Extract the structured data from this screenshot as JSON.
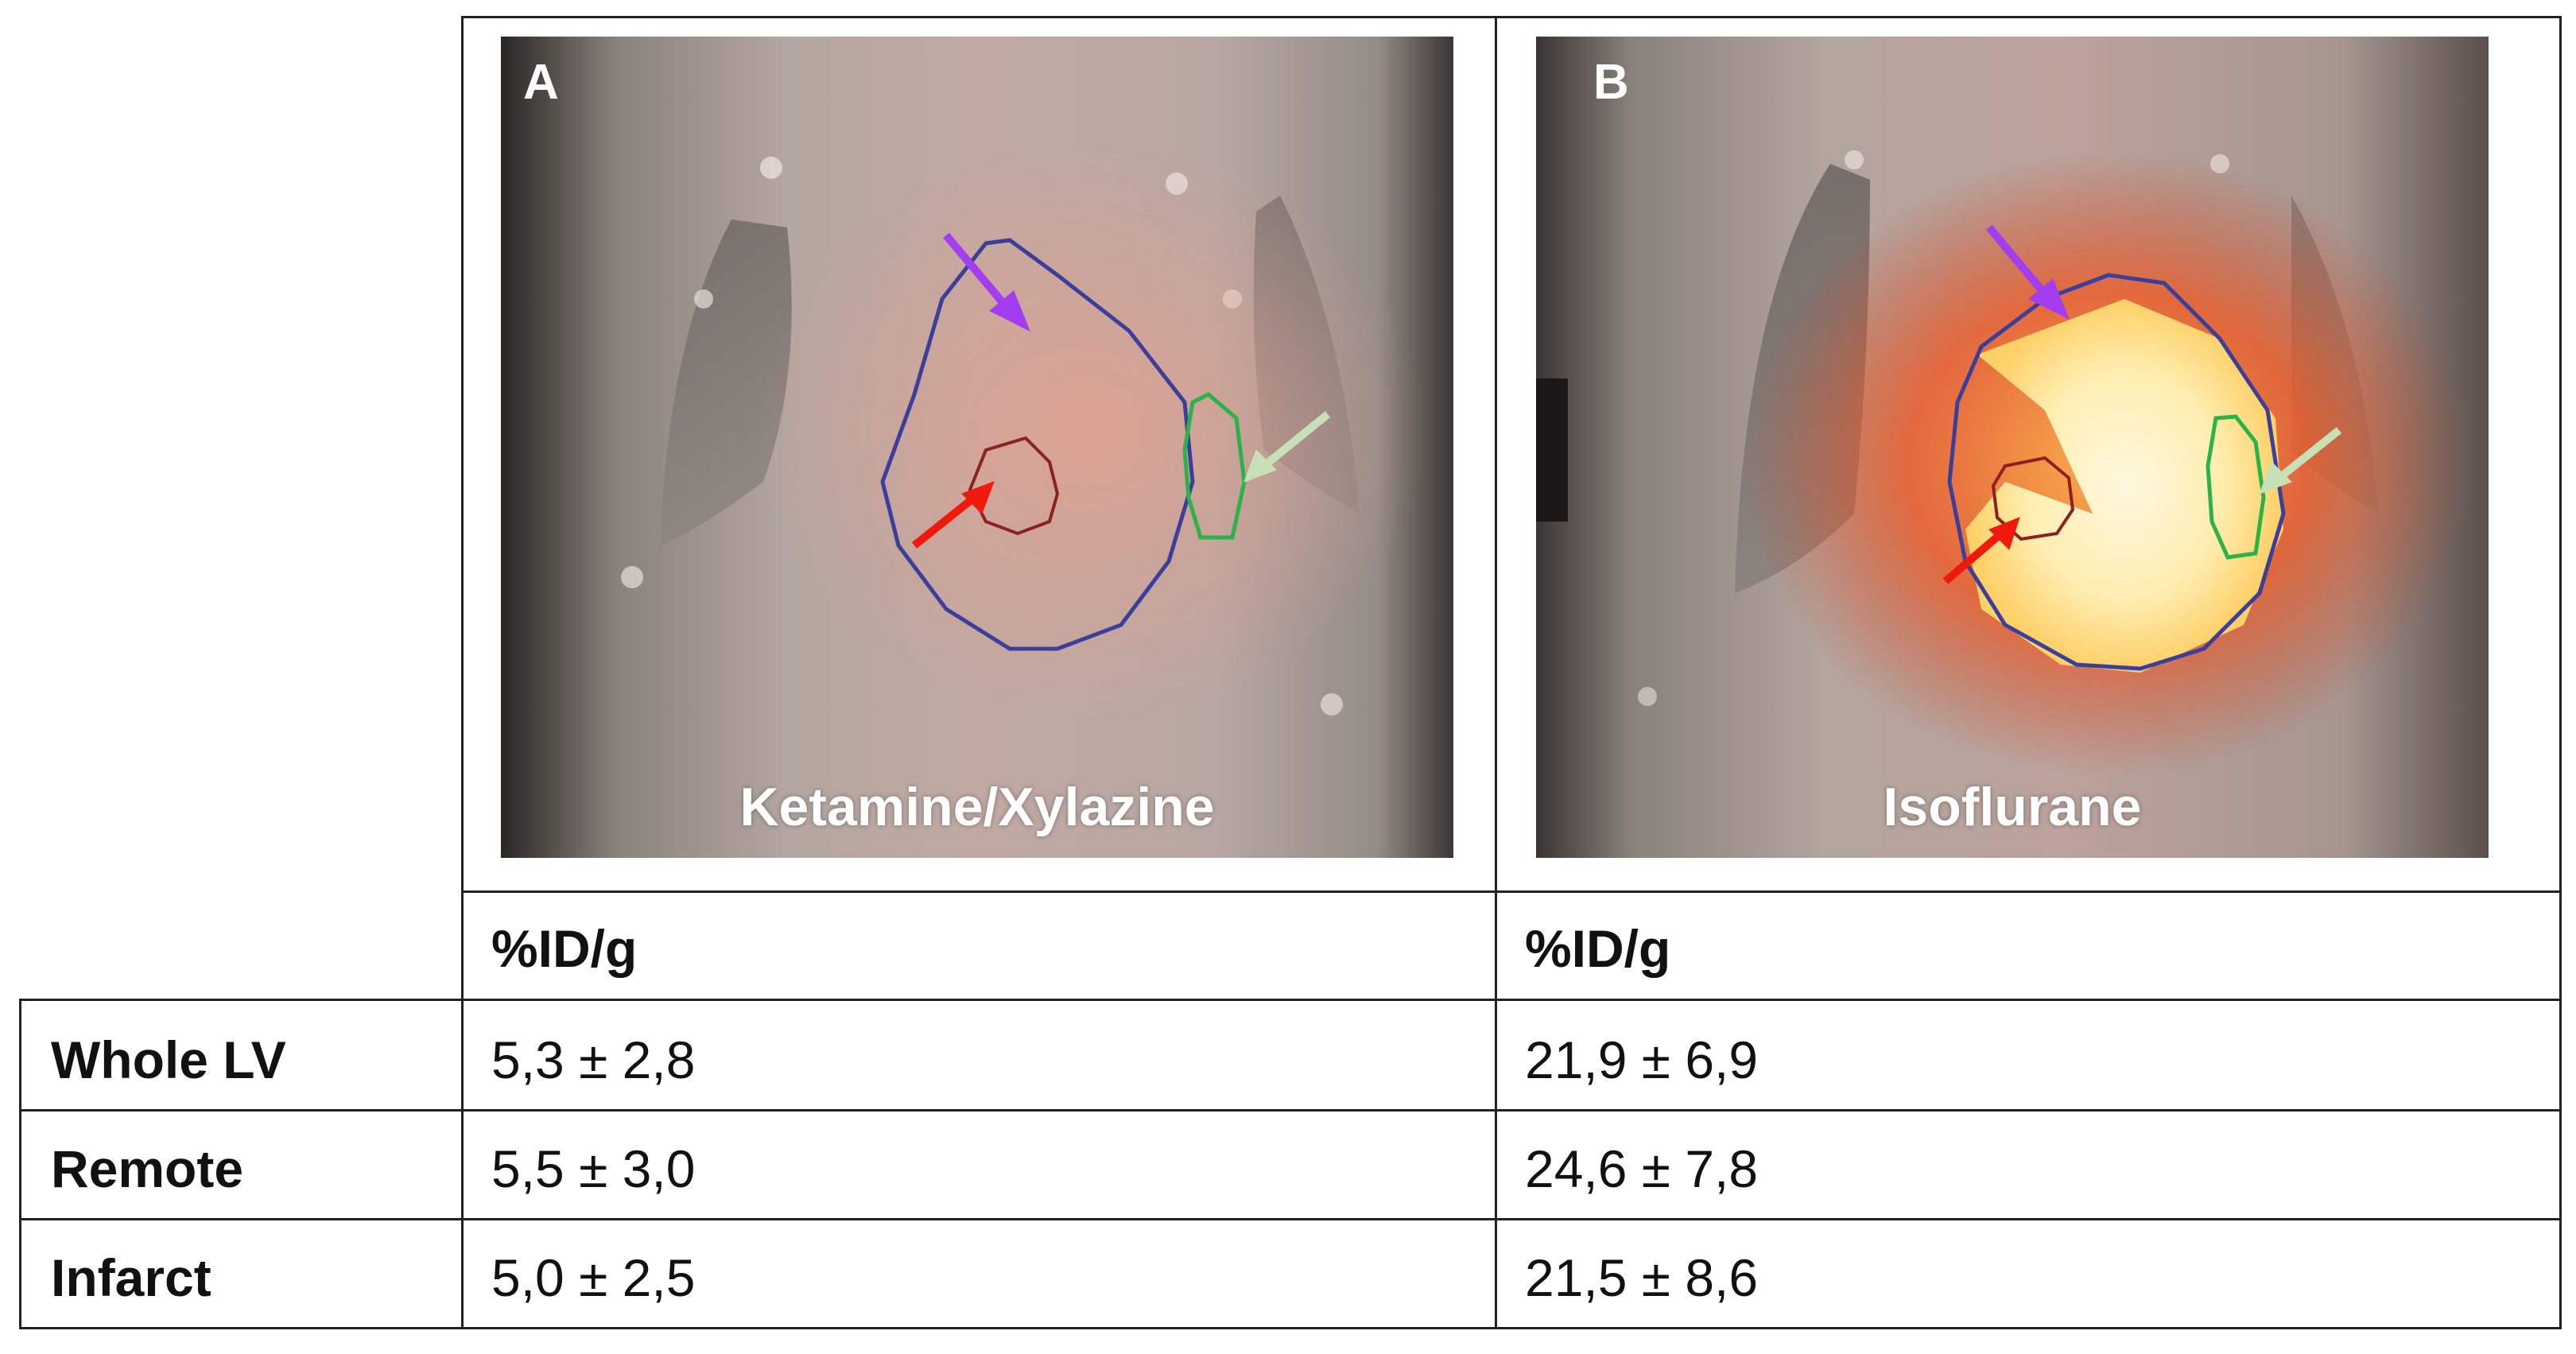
{
  "panels": [
    {
      "letter": "A",
      "caption": "Ketamine/Xylazine"
    },
    {
      "letter": "B",
      "caption": "Isoflurane"
    }
  ],
  "table": {
    "header": [
      "%ID/g",
      "%ID/g"
    ],
    "rows": [
      {
        "label": "Whole LV",
        "a": "5,3 ± 2,8",
        "b": "21,9 ± 6,9"
      },
      {
        "label": "Remote",
        "a": "5,5 ± 3,0",
        "b": "24,6 ± 7,8"
      },
      {
        "label": "Infarct",
        "a": "5,0 ± 2,5",
        "b": "21,5 ± 8,6"
      }
    ]
  },
  "colors": {
    "lv_contour": "#3a3f9c",
    "remote_contour": "#2bb34a",
    "infarct_contour": "#8a2222",
    "arrow_lv": "#a23df0",
    "arrow_remote": "#c8e0b8",
    "arrow_infarct": "#f01a0c"
  }
}
